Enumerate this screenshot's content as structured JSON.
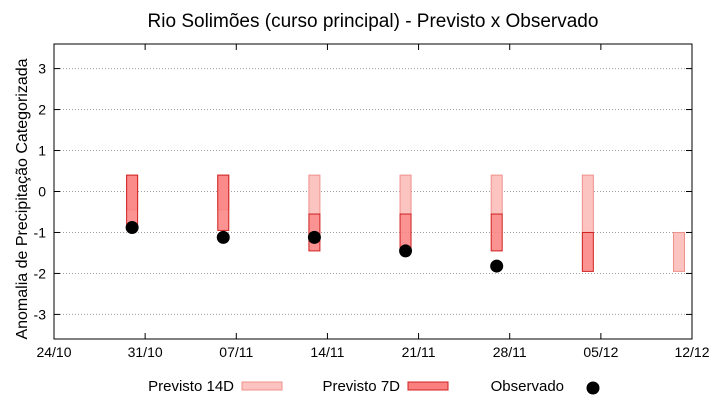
{
  "chart_data": {
    "type": "bar",
    "title": "Rio Solimões (curso principal) - Previsto x Observado",
    "xlabel": "",
    "ylabel": "Anomalia de Precipitação Categorizada",
    "x_ticks": [
      "24/10",
      "31/10",
      "07/11",
      "14/11",
      "21/11",
      "28/11",
      "05/12",
      "12/12"
    ],
    "xlim": [
      "24/10",
      "12/12"
    ],
    "y_ticks": [
      3,
      2,
      1,
      0,
      -1,
      -2,
      -3
    ],
    "ylim": [
      -3.6,
      3.6
    ],
    "grid": true,
    "legend_position": "bottom",
    "colors": {
      "previsto_14d_fill": "#fbc4c0",
      "previsto_14d_stroke": "#f0908a",
      "previsto_7d_fill": "#fa8080",
      "previsto_7d_stroke": "#d02020",
      "observado": "#000000",
      "grid": "#a0a0a0"
    },
    "series": [
      {
        "name": "Previsto 14D",
        "values": [
          {
            "x": "30/10",
            "low": -0.45,
            "high": 0.4
          },
          {
            "x": "06/11",
            "low": -0.45,
            "high": 0.4
          },
          {
            "x": "13/11",
            "low": -0.55,
            "high": 0.4
          },
          {
            "x": "20/11",
            "low": -0.55,
            "high": 0.4
          },
          {
            "x": "27/11",
            "low": -0.55,
            "high": 0.4
          },
          {
            "x": "04/12",
            "low": -1.0,
            "high": 0.4
          },
          {
            "x": "11/12",
            "low": -1.95,
            "high": -1.0
          }
        ]
      },
      {
        "name": "Previsto 7D",
        "values": [
          {
            "x": "30/10",
            "low": -0.85,
            "high": 0.4
          },
          {
            "x": "06/11",
            "low": -0.95,
            "high": 0.4
          },
          {
            "x": "13/11",
            "low": -1.45,
            "high": -0.55
          },
          {
            "x": "20/11",
            "low": -1.45,
            "high": -0.55
          },
          {
            "x": "27/11",
            "low": -1.45,
            "high": -0.55
          },
          {
            "x": "04/12",
            "low": -1.95,
            "high": -1.0
          }
        ]
      },
      {
        "name": "Observado",
        "values": [
          {
            "x": "30/10",
            "y": -0.88
          },
          {
            "x": "06/11",
            "y": -1.12
          },
          {
            "x": "13/11",
            "y": -1.12
          },
          {
            "x": "20/11",
            "y": -1.45
          },
          {
            "x": "27/11",
            "y": -1.82
          }
        ]
      }
    ]
  }
}
